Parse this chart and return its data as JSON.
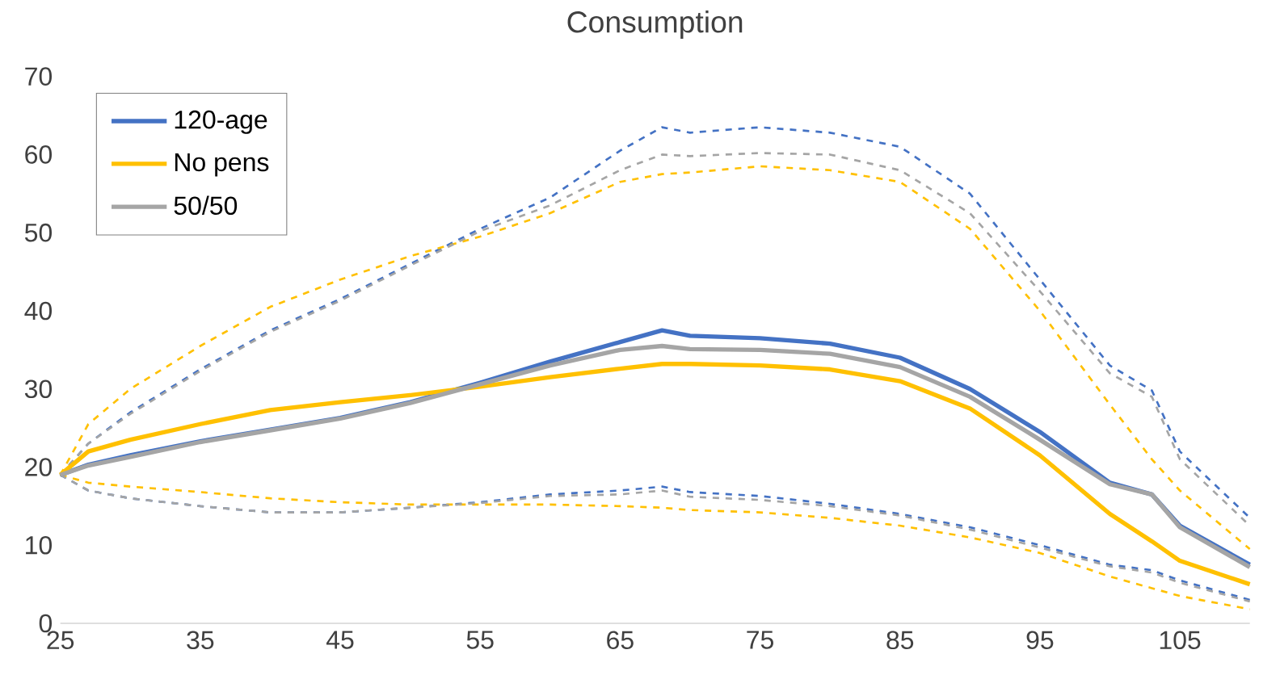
{
  "chart_data": {
    "type": "line",
    "title": "Consumption",
    "x": [
      25,
      27,
      30,
      35,
      40,
      45,
      50,
      55,
      60,
      65,
      68,
      70,
      75,
      80,
      85,
      90,
      95,
      100,
      103,
      105,
      110
    ],
    "series": [
      {
        "color": "#4472c4",
        "line_style": "dashed",
        "values": [
          19,
          17,
          16,
          15,
          14.2,
          14.2,
          14.8,
          15.5,
          16.5,
          17,
          17.5,
          16.8,
          16.3,
          15.3,
          14,
          12.3,
          10,
          7.5,
          6.8,
          5.5,
          3
        ]
      },
      {
        "color": "#4472c4",
        "line_style": "dashed",
        "values": [
          19,
          23,
          27,
          32.5,
          37.5,
          41.5,
          46,
          50.5,
          54.5,
          60.5,
          63.5,
          62.8,
          63.5,
          62.8,
          61,
          55,
          44,
          33,
          29.8,
          22,
          13.5
        ]
      },
      {
        "color": "#ffc000",
        "line_style": "dashed",
        "values": [
          19,
          18,
          17.5,
          16.8,
          16,
          15.5,
          15.2,
          15.2,
          15.2,
          15,
          14.8,
          14.5,
          14.2,
          13.5,
          12.5,
          11,
          9,
          6,
          4.5,
          3.5,
          1.8
        ]
      },
      {
        "color": "#ffc000",
        "line_style": "dashed",
        "values": [
          19,
          25.5,
          30,
          35.5,
          40.5,
          44,
          47,
          49.5,
          52.5,
          56.5,
          57.5,
          57.7,
          58.5,
          58,
          56.5,
          50.5,
          40,
          28,
          21,
          17,
          9.5
        ]
      },
      {
        "color": "#a5a5a5",
        "line_style": "dashed",
        "values": [
          19,
          17,
          16,
          15,
          14.2,
          14.2,
          14.8,
          15.4,
          16.3,
          16.5,
          17,
          16.2,
          15.8,
          15,
          13.8,
          12,
          9.7,
          7.3,
          6.5,
          5.2,
          2.8
        ]
      },
      {
        "color": "#a5a5a5",
        "line_style": "dashed",
        "values": [
          19,
          23,
          26.8,
          32.3,
          37.3,
          41.3,
          45.8,
          50.2,
          53.5,
          58,
          60,
          59.8,
          60.2,
          60,
          58,
          52.5,
          42.5,
          32,
          29,
          21,
          12.5
        ]
      },
      {
        "name": "120-age",
        "color": "#4472c4",
        "values": [
          19,
          20.3,
          21.5,
          23.3,
          24.8,
          26.3,
          28.3,
          30.8,
          33.5,
          36,
          37.5,
          36.8,
          36.5,
          35.8,
          34,
          30,
          24.5,
          18,
          16.5,
          12.5,
          7.5
        ]
      },
      {
        "name": "No pens",
        "color": "#ffc000",
        "values": [
          19,
          22,
          23.5,
          25.5,
          27.3,
          28.3,
          29.2,
          30.3,
          31.5,
          32.6,
          33.2,
          33.2,
          33,
          32.5,
          31,
          27.5,
          21.5,
          14,
          10.5,
          8,
          5
        ]
      },
      {
        "name": "50/50",
        "color": "#a5a5a5",
        "values": [
          19,
          20.2,
          21.3,
          23.2,
          24.7,
          26.2,
          28.2,
          30.6,
          33,
          35,
          35.5,
          35.1,
          35,
          34.5,
          32.8,
          29,
          23.5,
          17.8,
          16.5,
          12.3,
          7.2
        ]
      }
    ],
    "xlim": [
      25,
      110
    ],
    "xticks": [
      25,
      35,
      45,
      55,
      65,
      75,
      85,
      95,
      105
    ],
    "ylim": [
      0,
      70
    ],
    "yticks": [
      0,
      10,
      20,
      30,
      40,
      50,
      60,
      70
    ],
    "legend": "top left",
    "line_style": "solid"
  }
}
